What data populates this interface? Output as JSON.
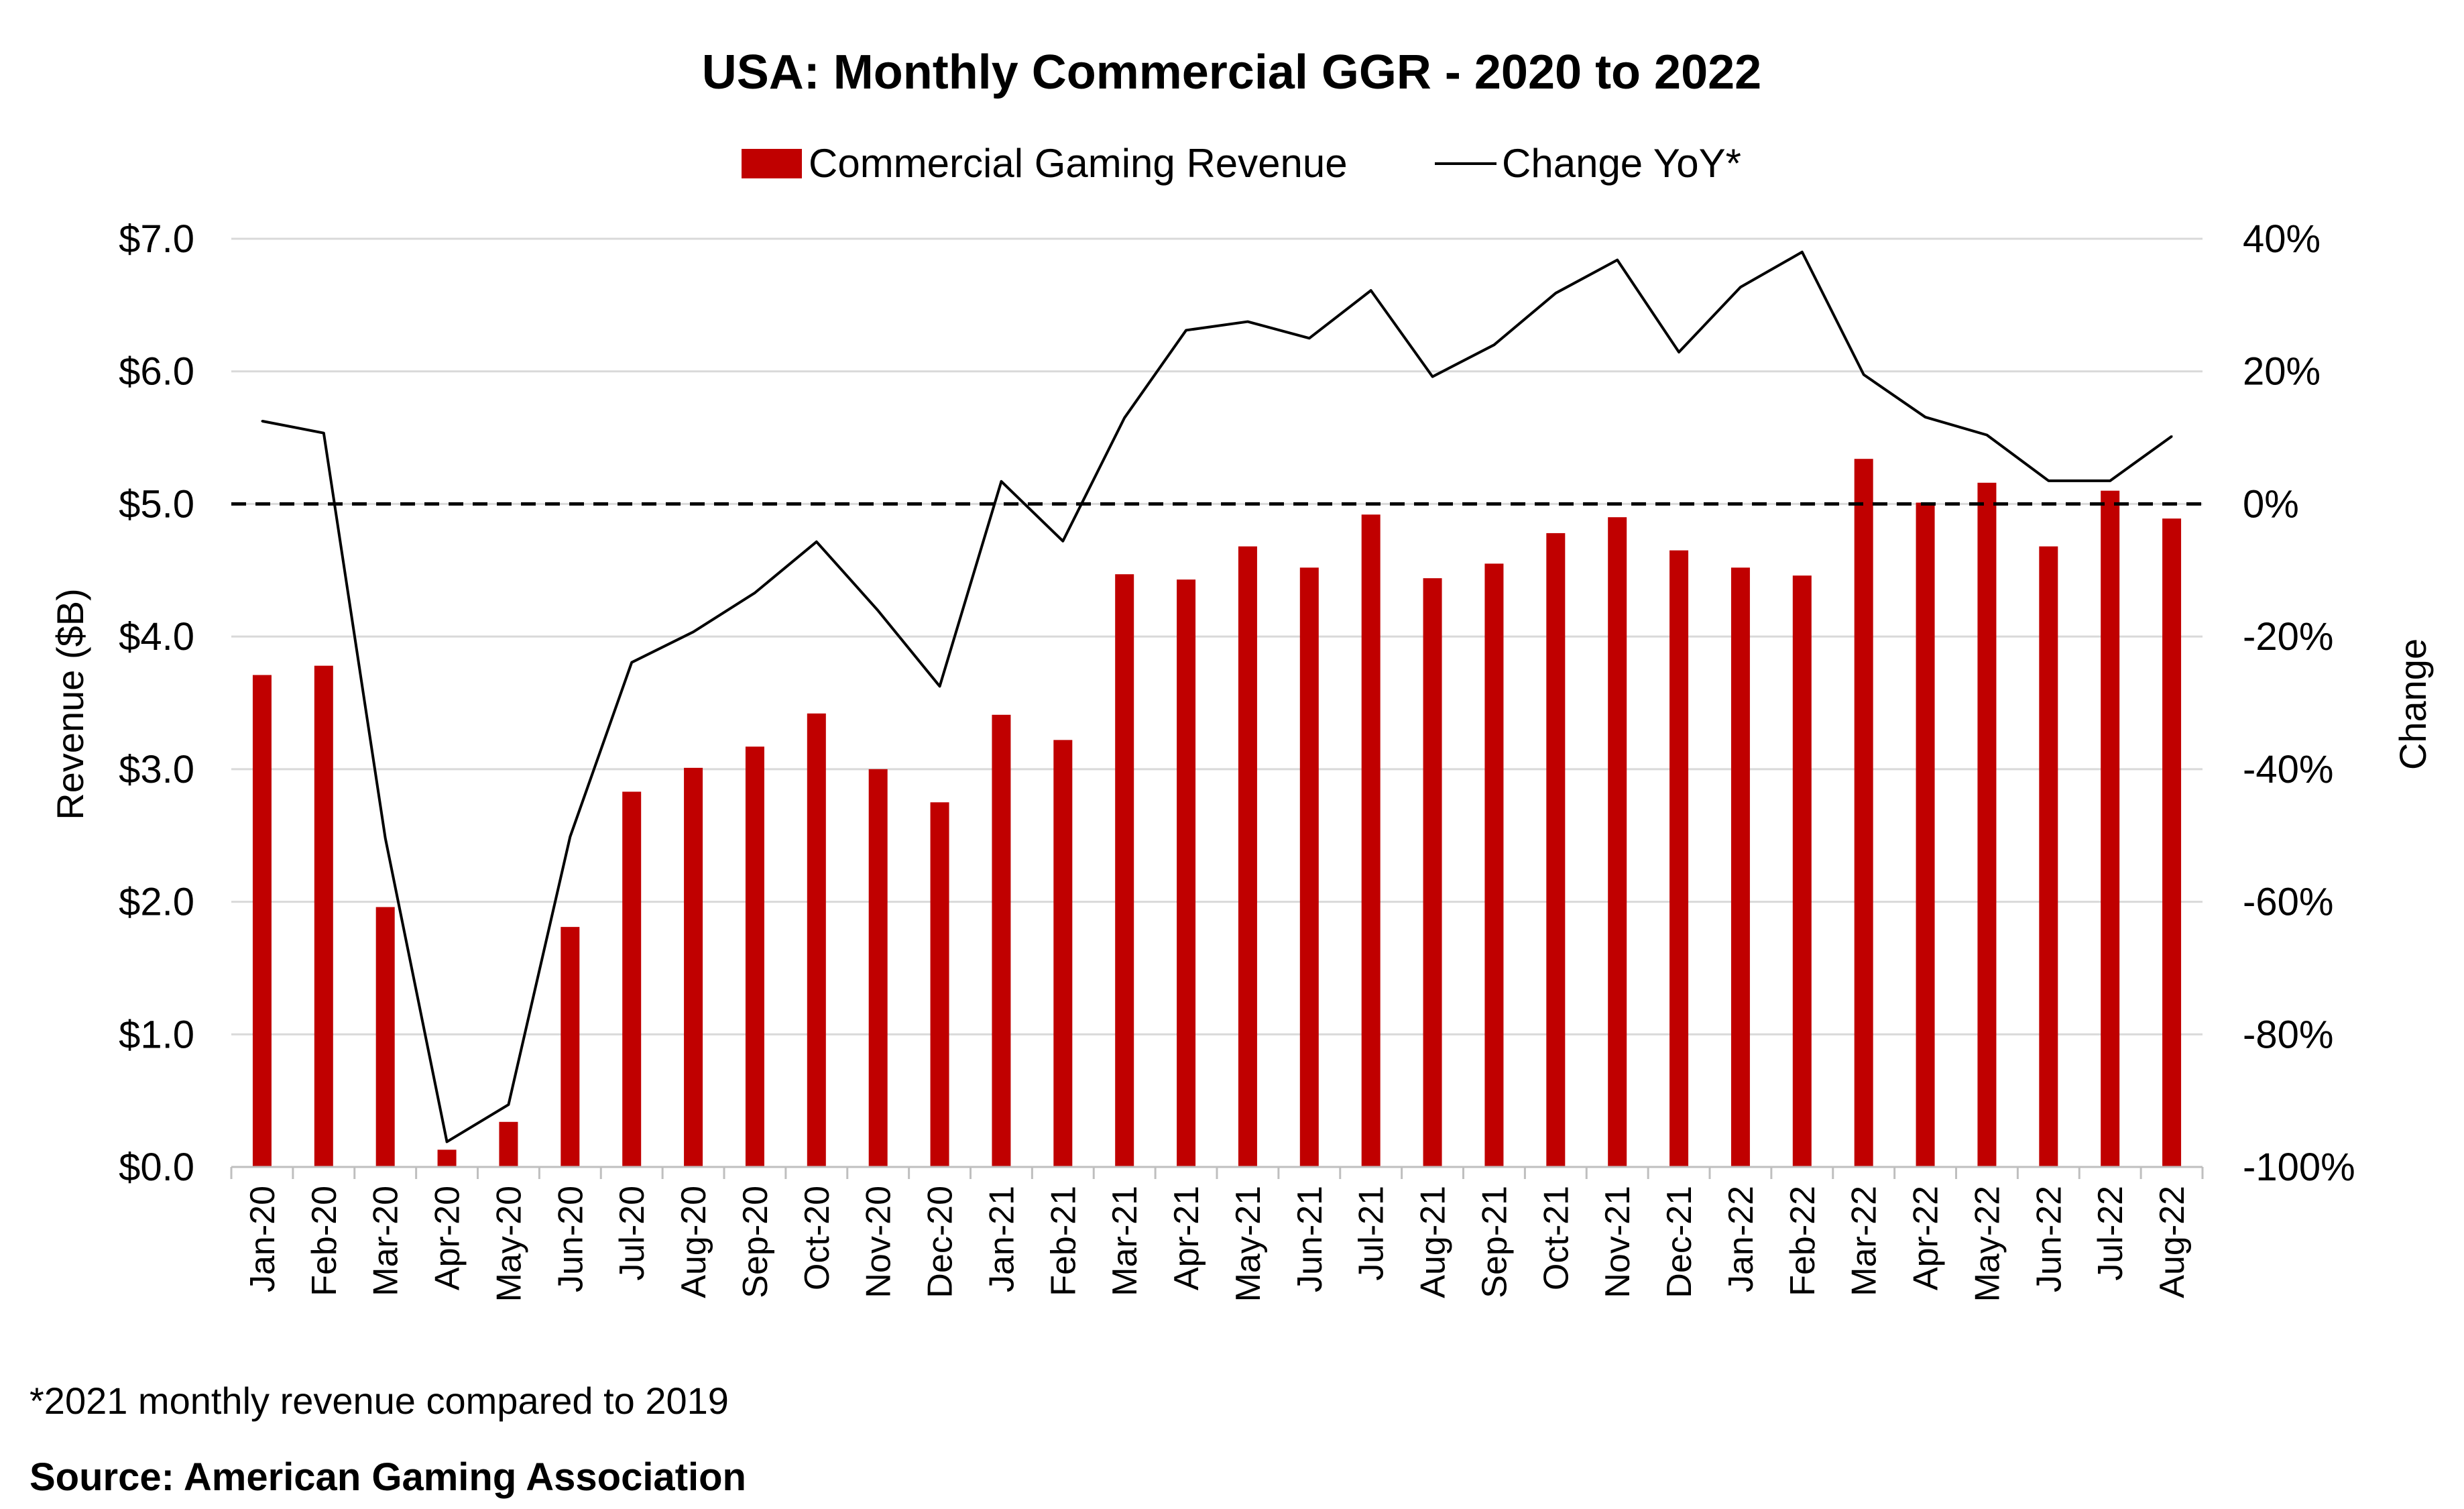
{
  "chart_data": {
    "type": "bar",
    "title": "USA: Monthly Commercial GGR - 2020 to 2022",
    "ylabel": "Revenue ($B)",
    "y2label": "Change",
    "ylim": [
      0,
      7
    ],
    "y2lim": [
      -100,
      40
    ],
    "yticks": [
      "$0.0",
      "$1.0",
      "$2.0",
      "$3.0",
      "$4.0",
      "$5.0",
      "$6.0",
      "$7.0"
    ],
    "y2ticks": [
      "-100%",
      "-80%",
      "-60%",
      "-40%",
      "-20%",
      "0%",
      "20%",
      "40%"
    ],
    "grid": true,
    "legend_position": "top",
    "categories": [
      "Jan-20",
      "Feb-20",
      "Mar-20",
      "Apr-20",
      "May-20",
      "Jun-20",
      "Jul-20",
      "Aug-20",
      "Sep-20",
      "Oct-20",
      "Nov-20",
      "Dec-20",
      "Jan-21",
      "Feb-21",
      "Mar-21",
      "Apr-21",
      "May-21",
      "Jun-21",
      "Jul-21",
      "Aug-21",
      "Sep-21",
      "Oct-21",
      "Nov-21",
      "Dec-21",
      "Jan-22",
      "Feb-22",
      "Mar-22",
      "Apr-22",
      "May-22",
      "Jun-22",
      "Jul-22",
      "Aug-22"
    ],
    "series": [
      {
        "name": "Commercial Gaming Revenue",
        "type": "bar",
        "axis": "left",
        "color": "#c00000",
        "values": [
          3.71,
          3.78,
          1.96,
          0.13,
          0.34,
          1.81,
          2.83,
          3.01,
          3.17,
          3.42,
          3.0,
          2.75,
          3.41,
          3.22,
          4.47,
          4.43,
          4.68,
          4.52,
          4.92,
          4.44,
          4.55,
          4.78,
          4.9,
          4.65,
          4.52,
          4.46,
          5.34,
          5.01,
          5.16,
          4.68,
          5.1,
          4.89
        ]
      },
      {
        "name": "Change YoY*",
        "type": "line",
        "axis": "right",
        "color": "#000000",
        "values": [
          12.5,
          10.7,
          -50.4,
          -96.2,
          -90.6,
          -50.2,
          -23.9,
          -19.3,
          -13.4,
          -5.7,
          -16.1,
          -27.5,
          3.4,
          -5.6,
          13.0,
          26.2,
          27.5,
          25.0,
          32.2,
          19.2,
          24.0,
          31.8,
          36.8,
          22.9,
          32.7,
          38.0,
          19.5,
          13.1,
          10.4,
          3.5,
          3.5,
          10.2
        ]
      }
    ],
    "reference_line": {
      "axis": "right",
      "value": 0,
      "style": "dashed"
    }
  },
  "footnote": "*2021 monthly revenue compared to 2019",
  "source": "Source: American Gaming Association"
}
